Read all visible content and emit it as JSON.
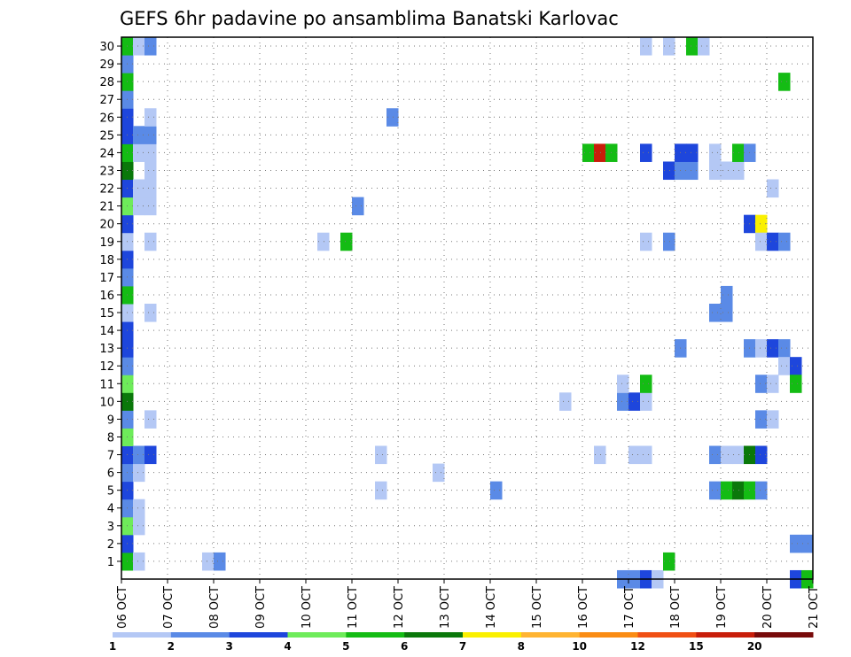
{
  "chart_data": {
    "type": "heatmap",
    "title": "GEFS 6hr padavine po ansamblima Banatski Karlovac",
    "xlabel": "",
    "ylabel": "",
    "x_ticks": [
      "06 OCT",
      "07 OCT",
      "08 OCT",
      "09 OCT",
      "10 OCT",
      "11 OCT",
      "12 OCT",
      "13 OCT",
      "14 OCT",
      "15 OCT",
      "16 OCT",
      "17 OCT",
      "18 OCT",
      "19 OCT",
      "20 OCT",
      "21 OCT"
    ],
    "y_ticks": [
      "1",
      "2",
      "3",
      "4",
      "5",
      "6",
      "7",
      "8",
      "9",
      "10",
      "11",
      "12",
      "13",
      "14",
      "15",
      "16",
      "17",
      "18",
      "19",
      "20",
      "21",
      "22",
      "23",
      "24",
      "25",
      "26",
      "27",
      "28",
      "29",
      "30"
    ],
    "xlim": [
      0,
      15
    ],
    "ylim": [
      0,
      30
    ],
    "grid": true,
    "legend": {
      "placement": "bottom",
      "labels": [
        "1",
        "2",
        "3",
        "4",
        "5",
        "6",
        "7",
        "8",
        "10",
        "12",
        "15",
        "20"
      ],
      "colors": [
        "#b4c8f5",
        "#5a8ae6",
        "#1e46dc",
        "#6eec5a",
        "#14bc14",
        "#0a780a",
        "#faf000",
        "#ffb432",
        "#fa8c14",
        "#f05014",
        "#c81e0a",
        "#780a0a"
      ]
    },
    "cells_note_units": "day offset from 06 OCT, member index, precipitation class",
    "cells": [
      [
        0,
        0,
        5
      ],
      [
        0,
        1,
        3
      ],
      [
        0,
        2,
        4
      ],
      [
        0,
        3,
        2
      ],
      [
        0,
        4,
        3
      ],
      [
        0,
        5,
        2
      ],
      [
        0,
        6,
        3
      ],
      [
        0,
        7,
        4
      ],
      [
        0,
        8,
        2
      ],
      [
        0,
        9,
        6
      ],
      [
        0,
        10,
        4
      ],
      [
        0,
        11,
        2
      ],
      [
        0,
        12,
        3
      ],
      [
        0,
        13,
        3
      ],
      [
        0,
        14,
        1
      ],
      [
        0,
        15,
        5
      ],
      [
        0,
        16,
        2
      ],
      [
        0,
        17,
        3
      ],
      [
        0,
        18,
        1
      ],
      [
        0,
        19,
        3
      ],
      [
        0,
        20,
        4
      ],
      [
        0,
        21,
        3
      ],
      [
        0,
        22,
        6
      ],
      [
        0,
        23,
        5
      ],
      [
        0,
        24,
        3
      ],
      [
        0,
        25,
        3
      ],
      [
        0,
        26,
        2
      ],
      [
        0,
        27,
        5
      ],
      [
        0,
        28,
        2
      ],
      [
        0,
        29,
        5
      ],
      [
        0.25,
        0,
        1
      ],
      [
        0.25,
        2,
        1
      ],
      [
        0.25,
        3,
        1
      ],
      [
        0.25,
        5,
        1
      ],
      [
        0.25,
        6,
        2
      ],
      [
        0.25,
        20,
        1
      ],
      [
        0.25,
        21,
        1
      ],
      [
        0.25,
        23,
        1
      ],
      [
        0.25,
        24,
        2
      ],
      [
        0.25,
        29,
        1
      ],
      [
        0.5,
        6,
        3
      ],
      [
        0.5,
        8,
        1
      ],
      [
        0.5,
        14,
        1
      ],
      [
        0.5,
        18,
        1
      ],
      [
        0.5,
        20,
        1
      ],
      [
        0.5,
        21,
        1
      ],
      [
        0.5,
        22,
        1
      ],
      [
        0.5,
        23,
        1
      ],
      [
        0.5,
        24,
        2
      ],
      [
        0.5,
        25,
        1
      ],
      [
        0.5,
        29,
        2
      ],
      [
        1.75,
        0,
        1
      ],
      [
        2,
        0,
        2
      ],
      [
        4.25,
        18,
        1
      ],
      [
        4.75,
        18,
        5
      ],
      [
        5,
        20,
        2
      ],
      [
        5.5,
        4,
        1
      ],
      [
        5.5,
        6,
        1
      ],
      [
        5.75,
        25,
        2
      ],
      [
        6.75,
        5,
        1
      ],
      [
        8,
        4,
        2
      ],
      [
        9.5,
        9,
        1
      ],
      [
        10,
        23,
        5
      ],
      [
        10.25,
        23,
        11
      ],
      [
        10.5,
        23,
        5
      ],
      [
        10.25,
        6,
        1
      ],
      [
        10.75,
        -1,
        2
      ],
      [
        11,
        -1,
        2
      ],
      [
        11.25,
        -1,
        3
      ],
      [
        11.5,
        -1,
        1
      ],
      [
        10.75,
        9,
        2
      ],
      [
        11,
        9,
        3
      ],
      [
        11.25,
        9,
        1
      ],
      [
        10.75,
        10,
        1
      ],
      [
        11.25,
        10,
        5
      ],
      [
        11,
        6,
        1
      ],
      [
        11.25,
        6,
        1
      ],
      [
        11.25,
        18,
        1
      ],
      [
        11.25,
        23,
        3
      ],
      [
        11.25,
        29,
        1
      ],
      [
        11.75,
        0,
        5
      ],
      [
        11.75,
        18,
        2
      ],
      [
        11.75,
        22,
        3
      ],
      [
        12,
        22,
        2
      ],
      [
        12.25,
        22,
        2
      ],
      [
        12,
        12,
        2
      ],
      [
        12,
        23,
        3
      ],
      [
        12.25,
        23,
        3
      ],
      [
        11.75,
        29,
        1
      ],
      [
        12.25,
        29,
        5
      ],
      [
        12.5,
        29,
        1
      ],
      [
        12.75,
        4,
        2
      ],
      [
        13,
        4,
        5
      ],
      [
        13.25,
        4,
        6
      ],
      [
        13.5,
        4,
        5
      ],
      [
        13.75,
        4,
        2
      ],
      [
        12.75,
        6,
        2
      ],
      [
        13,
        6,
        1
      ],
      [
        13.25,
        6,
        1
      ],
      [
        12.75,
        14,
        2
      ],
      [
        13,
        14,
        2
      ],
      [
        13,
        15,
        2
      ],
      [
        12.75,
        22,
        1
      ],
      [
        13,
        22,
        1
      ],
      [
        13.25,
        22,
        1
      ],
      [
        12.75,
        23,
        1
      ],
      [
        13.25,
        23,
        5
      ],
      [
        13.5,
        23,
        2
      ],
      [
        13.5,
        6,
        6
      ],
      [
        13.75,
        6,
        3
      ],
      [
        13.5,
        12,
        2
      ],
      [
        13.75,
        12,
        1
      ],
      [
        14,
        12,
        3
      ],
      [
        14.25,
        12,
        2
      ],
      [
        13.75,
        8,
        2
      ],
      [
        14,
        8,
        1
      ],
      [
        13.75,
        10,
        2
      ],
      [
        14,
        10,
        1
      ],
      [
        13.5,
        19,
        3
      ],
      [
        13.75,
        19,
        7
      ],
      [
        13.75,
        18,
        1
      ],
      [
        14,
        18,
        3
      ],
      [
        14.25,
        18,
        2
      ],
      [
        14,
        21,
        1
      ],
      [
        14.25,
        27,
        5
      ],
      [
        14.25,
        11,
        1
      ],
      [
        14.5,
        11,
        3
      ],
      [
        14.5,
        10,
        5
      ],
      [
        14.5,
        1,
        2
      ],
      [
        14.75,
        1,
        2
      ],
      [
        14.5,
        -1,
        3
      ],
      [
        14.75,
        -1,
        5
      ]
    ]
  }
}
